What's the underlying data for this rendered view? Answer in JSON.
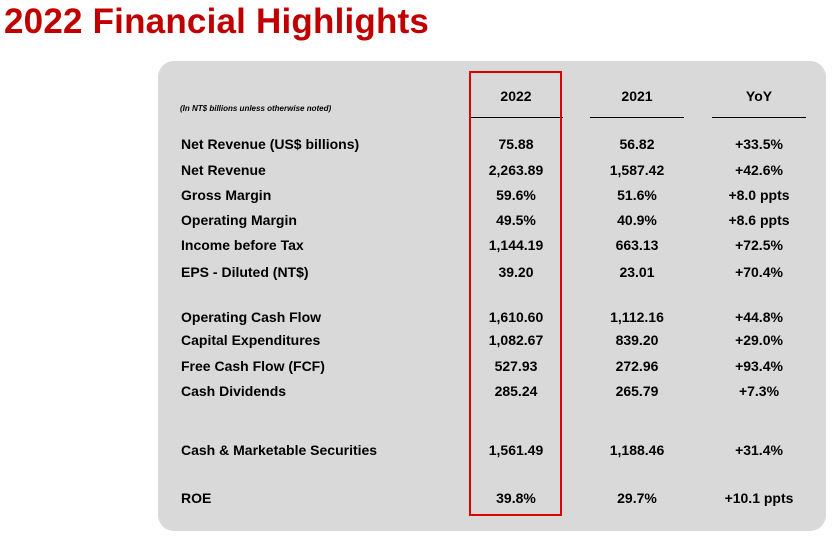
{
  "title": "2022 Financial Highlights",
  "note": "(In NT$ billions unless otherwise noted)",
  "headers": [
    "2022",
    "2021",
    "YoY"
  ],
  "rows": [
    {
      "label": "Net Revenue (US$ billions)",
      "v2022": "75.88",
      "v2021": "56.82",
      "yoy": "+33.5%"
    },
    {
      "label": "Net Revenue",
      "v2022": "2,263.89",
      "v2021": "1,587.42",
      "yoy": "+42.6%"
    },
    {
      "label": "Gross Margin",
      "v2022": "59.6%",
      "v2021": "51.6%",
      "yoy": "+8.0 ppts"
    },
    {
      "label": "Operating Margin",
      "v2022": "49.5%",
      "v2021": "40.9%",
      "yoy": "+8.6 ppts"
    },
    {
      "label": "Income before Tax",
      "v2022": "1,144.19",
      "v2021": "663.13",
      "yoy": "+72.5%"
    },
    {
      "label": "EPS - Diluted (NT$)",
      "v2022": "39.20",
      "v2021": "23.01",
      "yoy": "+70.4%"
    },
    {
      "label": "Operating Cash Flow",
      "v2022": "1,610.60",
      "v2021": "1,112.16",
      "yoy": "+44.8%"
    },
    {
      "label": "Capital Expenditures",
      "v2022": "1,082.67",
      "v2021": "839.20",
      "yoy": "+29.0%"
    },
    {
      "label": "Free Cash Flow (FCF)",
      "v2022": "527.93",
      "v2021": "272.96",
      "yoy": "+93.4%"
    },
    {
      "label": "Cash Dividends",
      "v2022": "285.24",
      "v2021": "265.79",
      "yoy": "+7.3%"
    },
    {
      "label": "Cash & Marketable Securities",
      "v2022": "1,561.49",
      "v2021": "1,188.46",
      "yoy": "+31.4%"
    },
    {
      "label": "ROE",
      "v2022": "39.8%",
      "v2021": "29.7%",
      "yoy": "+10.1 ppts"
    }
  ],
  "colors": {
    "title": "#c00000",
    "highlight": "#e00000",
    "panel": "#d9d9d9"
  }
}
